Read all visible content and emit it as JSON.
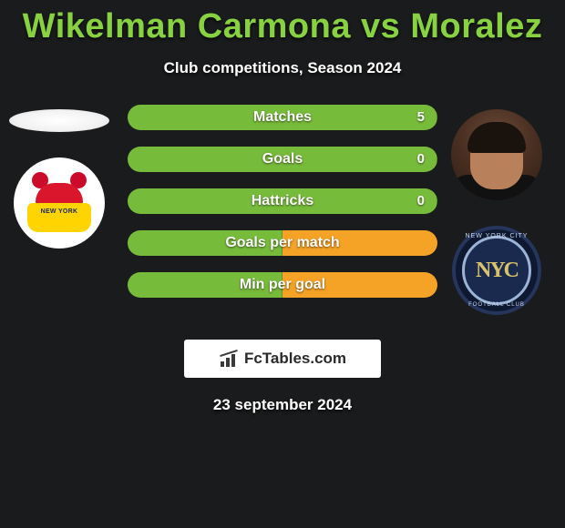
{
  "title": "Wikelman Carmona vs Moralez",
  "subtitle": "Club competitions, Season 2024",
  "brand": "FcTables.com",
  "date": "23 september 2024",
  "colors": {
    "left": "#77bb3b",
    "right": "#f5a326",
    "accent": "#88d242",
    "bg": "#1a1b1c"
  },
  "bars": [
    {
      "label": "Matches",
      "left_pct": 100,
      "right_value": "5"
    },
    {
      "label": "Goals",
      "left_pct": 100,
      "right_value": "0"
    },
    {
      "label": "Hattricks",
      "left_pct": 100,
      "right_value": "0"
    },
    {
      "label": "Goals per match",
      "left_pct": 50,
      "right_value": ""
    },
    {
      "label": "Min per goal",
      "left_pct": 50,
      "right_value": ""
    }
  ],
  "left_player": {
    "club": "New York Red Bulls"
  },
  "right_player": {
    "club": "New York City FC",
    "monogram": "NYC"
  }
}
